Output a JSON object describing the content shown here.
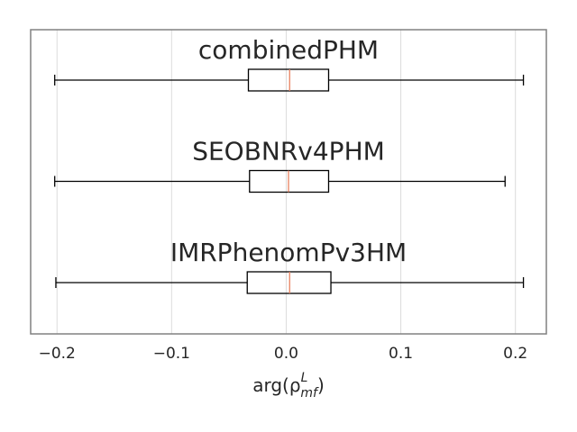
{
  "chart_data": {
    "type": "boxplot",
    "orientation": "horizontal",
    "xlabel": [
      "arg(ρ",
      "L",
      "mf",
      ")"
    ],
    "xlim": [
      -0.223,
      0.227
    ],
    "xticks": [
      {
        "value": -0.2,
        "label": "−0.2"
      },
      {
        "value": -0.1,
        "label": "−0.1"
      },
      {
        "value": 0,
        "label": "0.0"
      },
      0.1,
      0.2
    ],
    "grid": true,
    "box_color": "#000000",
    "median_color": "#e8815f",
    "series": [
      {
        "name": "combinedPHM",
        "whislo": -0.202,
        "q1": -0.033,
        "med": 0.003,
        "q3": 0.037,
        "whishi": 0.207
      },
      {
        "name": "SEOBNRv4PHM",
        "whislo": -0.202,
        "q1": -0.032,
        "med": 0.002,
        "q3": 0.037,
        "whishi": 0.191
      },
      {
        "name": "IMRPhenomPv3HM",
        "whislo": -0.201,
        "q1": -0.034,
        "med": 0.003,
        "q3": 0.039,
        "whishi": 0.207
      }
    ]
  }
}
